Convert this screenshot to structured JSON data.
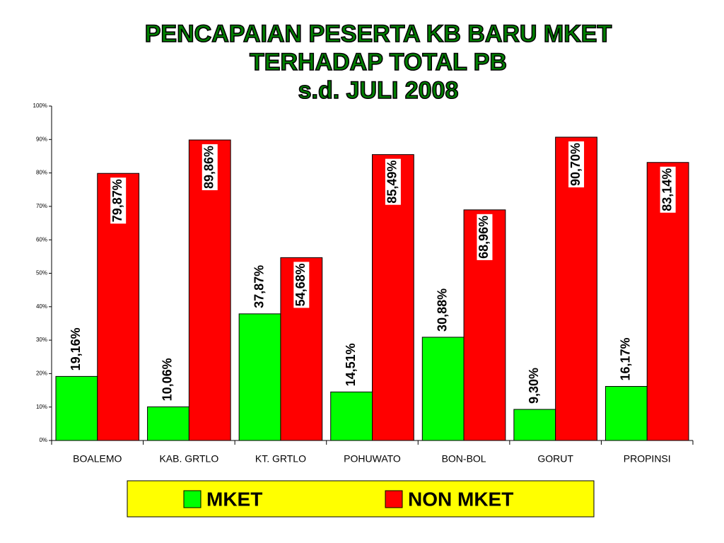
{
  "chart_data": {
    "type": "bar",
    "title": [
      "PENCAPAIAN PESERTA KB BARU MKET",
      "TERHADAP  TOTAL PB",
      "s.d.  JULI 2008"
    ],
    "categories": [
      "BOALEMO",
      "KAB. GRTLO",
      "KT. GRTLO",
      "POHUWATO",
      "BON-BOL",
      "GORUT",
      "PROPINSI"
    ],
    "series": [
      {
        "name": "MKET",
        "color": "#00ff00",
        "values": [
          19.16,
          10.06,
          37.87,
          14.51,
          30.88,
          9.3,
          16.17
        ],
        "value_labels": [
          "19,16%",
          "10,06%",
          "37,87%",
          "14,51%",
          "30,88%",
          "9,30%",
          "16,17%"
        ]
      },
      {
        "name": "NON MKET",
        "color": "#ff0000",
        "values": [
          79.87,
          89.86,
          54.68,
          85.49,
          68.96,
          90.7,
          83.14
        ],
        "value_labels": [
          "79,87%",
          "89,86%",
          "54,68%",
          "85,49%",
          "68,96%",
          "90,70%",
          "83,14%"
        ]
      }
    ],
    "ylim": [
      0,
      100
    ],
    "yticks": [
      {
        "value": 0,
        "label": "0%"
      },
      {
        "value": 10,
        "label": "10%"
      },
      {
        "value": 20,
        "label": "20%"
      },
      {
        "value": 30,
        "label": "30%"
      },
      {
        "value": 40,
        "label": "40%"
      },
      {
        "value": 50,
        "label": "50%"
      },
      {
        "value": 60,
        "label": "60%"
      },
      {
        "value": 70,
        "label": "70%"
      },
      {
        "value": 80,
        "label": "80%"
      },
      {
        "value": 90,
        "label": "90%"
      },
      {
        "value": 100,
        "label": "100%"
      }
    ],
    "grid": false,
    "legend": "bottom"
  }
}
